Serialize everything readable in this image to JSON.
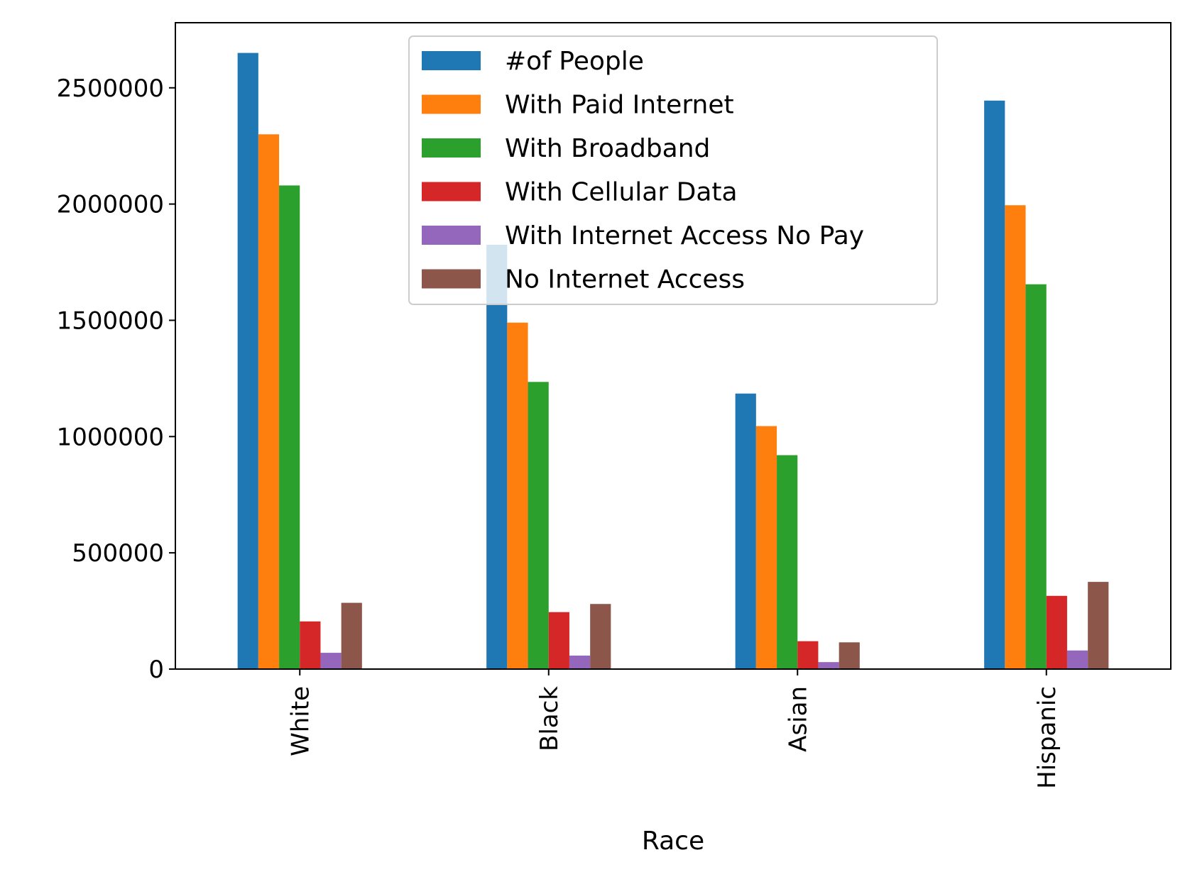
{
  "chart_data": {
    "type": "bar",
    "title": "",
    "xlabel": "Race",
    "ylabel": "",
    "categories": [
      "White",
      "Black",
      "Asian",
      "Hispanic"
    ],
    "series": [
      {
        "name": "#of People",
        "color": "#1f77b4",
        "values": [
          2650000,
          1825000,
          1185000,
          2445000
        ]
      },
      {
        "name": "With Paid Internet",
        "color": "#ff7f0e",
        "values": [
          2300000,
          1490000,
          1045000,
          1995000
        ]
      },
      {
        "name": "With Broadband",
        "color": "#2ca02c",
        "values": [
          2080000,
          1235000,
          920000,
          1655000
        ]
      },
      {
        "name": "With Cellular Data",
        "color": "#d62728",
        "values": [
          205000,
          245000,
          120000,
          315000
        ]
      },
      {
        "name": "With Internet Access No Pay",
        "color": "#9467bd",
        "values": [
          70000,
          58000,
          30000,
          80000
        ]
      },
      {
        "name": "No Internet Access",
        "color": "#8c564b",
        "values": [
          285000,
          280000,
          115000,
          375000
        ]
      }
    ],
    "yticks": [
      0,
      500000,
      1000000,
      1500000,
      2000000,
      2500000
    ],
    "ylim": [
      0,
      2780000
    ],
    "legend_position": "top-center",
    "grid": false
  }
}
